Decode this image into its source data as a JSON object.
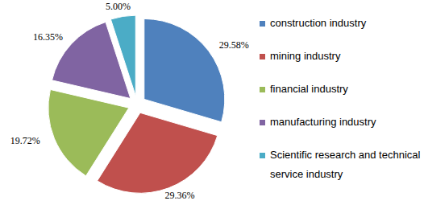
{
  "chart_data": {
    "type": "pie",
    "categories": [
      "construction industry",
      "mining industry",
      "financial industry",
      "manufacturing industry",
      "Scientific research and technical service industry"
    ],
    "values": [
      29.58,
      29.36,
      19.72,
      16.35,
      5.0
    ],
    "value_labels": [
      "29.58%",
      "29.36%",
      "19.72%",
      "16.35%",
      "5.00%"
    ],
    "colors": [
      "#4f81bd",
      "#c0504d",
      "#9bbb59",
      "#8064a2",
      "#4bacc6"
    ],
    "data_labels": true,
    "legend": "right"
  }
}
